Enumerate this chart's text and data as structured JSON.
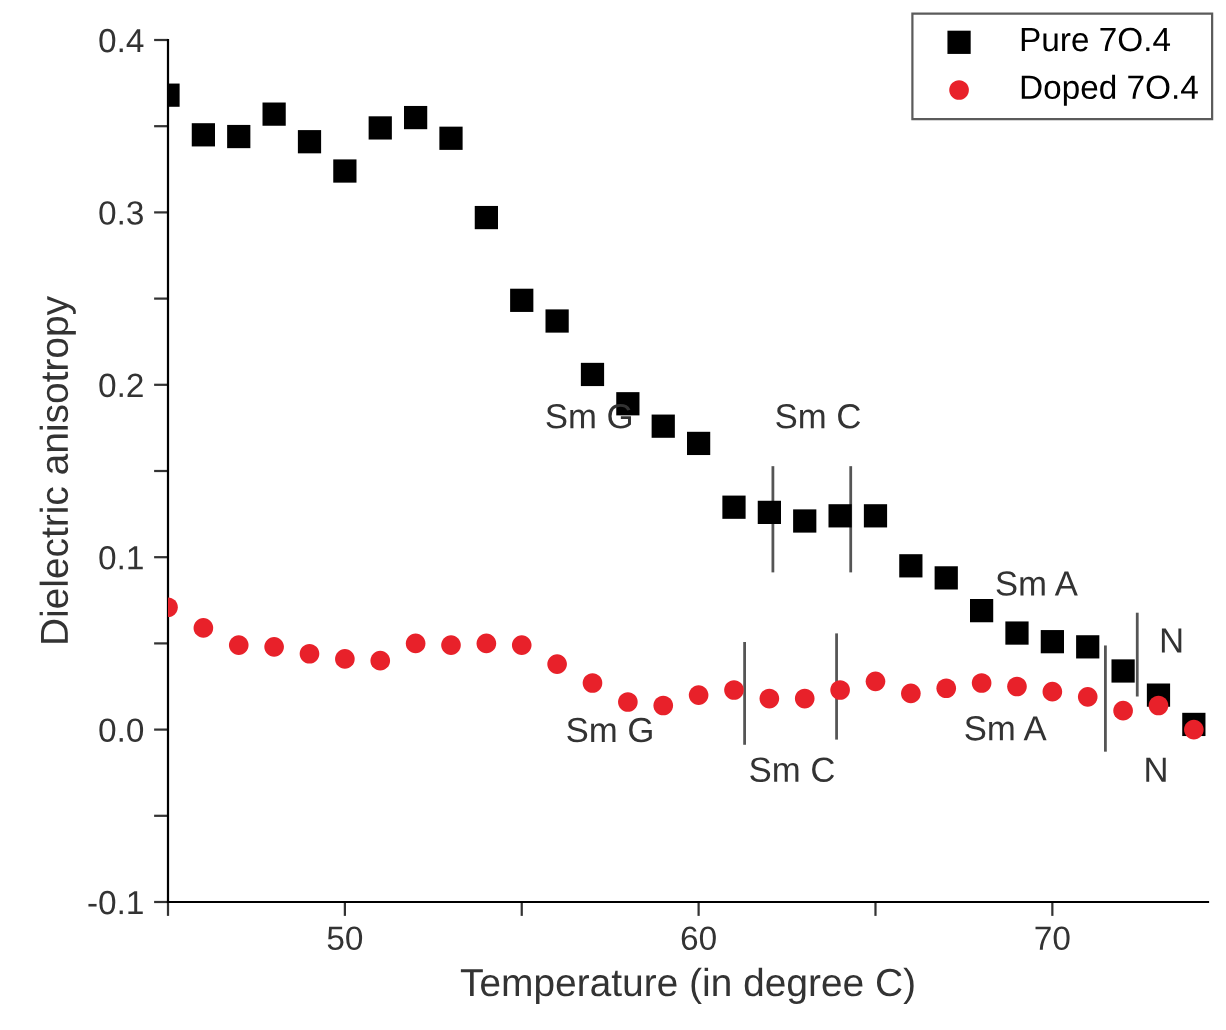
{
  "chart_data": {
    "type": "scatter",
    "xlabel": "Temperature (in degree C)",
    "ylabel": "Dielectric anisotropy",
    "xlim": [
      45,
      74.4
    ],
    "ylim": [
      -0.1,
      0.4
    ],
    "xticks": [
      {
        "value": 45,
        "label": null
      },
      50,
      {
        "value": 55,
        "label": null
      },
      60,
      {
        "value": 65,
        "label": null
      },
      70
    ],
    "yticks": [
      -0.1,
      {
        "value": -0.05,
        "label": null
      },
      {
        "value": 0,
        "label": "0.0"
      },
      {
        "value": 0.05,
        "label": null
      },
      0.1,
      {
        "value": 0.15,
        "label": null
      },
      0.2,
      {
        "value": 0.25,
        "label": null
      },
      0.3,
      {
        "value": 0.35,
        "label": null
      },
      0.4
    ],
    "grid": false,
    "legend": "top right",
    "series": [
      {
        "name": "Pure 7O.4",
        "color": "#000000",
        "marker": "square",
        "x": [
          45,
          46,
          47,
          48,
          49,
          50,
          51,
          52,
          53,
          54,
          55,
          56,
          57,
          58,
          59,
          60,
          61,
          62,
          63,
          64,
          65,
          66,
          67,
          68,
          69,
          70,
          71,
          72,
          73,
          74
        ],
        "values": [
          0.368,
          0.345,
          0.344,
          0.357,
          0.341,
          0.324,
          0.349,
          0.355,
          0.343,
          0.297,
          0.249,
          0.237,
          0.206,
          0.189,
          0.176,
          0.166,
          0.129,
          0.126,
          0.121,
          0.124,
          0.124,
          0.095,
          0.088,
          0.069,
          0.056,
          0.051,
          0.048,
          0.034,
          0.02,
          0.003
        ]
      },
      {
        "name": "Doped 7O.4",
        "color": "#e8212a",
        "marker": "circle",
        "x": [
          45,
          46,
          47,
          48,
          49,
          50,
          51,
          52,
          53,
          54,
          55,
          56,
          57,
          58,
          59,
          60,
          61,
          62,
          63,
          64,
          65,
          66,
          67,
          68,
          69,
          70,
          71,
          72,
          73,
          74
        ],
        "values": [
          0.071,
          0.059,
          0.049,
          0.048,
          0.044,
          0.041,
          0.04,
          0.05,
          0.049,
          0.05,
          0.049,
          0.038,
          0.027,
          0.016,
          0.014,
          0.02,
          0.023,
          0.018,
          0.018,
          0.023,
          0.028,
          0.021,
          0.024,
          0.027,
          0.025,
          0.022,
          0.019,
          0.011,
          0.014,
          0.0
        ]
      },
      {
        "type": "line",
        "color": "#555555",
        "x": [
          62.1,
          62.1
        ],
        "values": [
          0.152,
          0.092
        ]
      },
      {
        "type": "line",
        "color": "#555555",
        "x": [
          64.3,
          64.3
        ],
        "values": [
          0.152,
          0.092
        ]
      },
      {
        "type": "line",
        "color": "#555555",
        "x": [
          72.4,
          72.4
        ],
        "values": [
          0.067,
          0.02
        ]
      },
      {
        "type": "line",
        "color": "#555555",
        "x": [
          61.3,
          61.3
        ],
        "values": [
          0.05,
          -0.008
        ]
      },
      {
        "type": "line",
        "color": "#555555",
        "x": [
          63.9,
          63.9
        ],
        "values": [
          0.055,
          -0.005
        ]
      },
      {
        "type": "line",
        "color": "#555555",
        "x": [
          71.5,
          71.5
        ],
        "values": [
          0.048,
          -0.012
        ]
      }
    ],
    "annotations": [
      "Sm G",
      "Sm C",
      "Sm A",
      "N",
      "Sm G",
      "Sm C",
      "Sm A",
      "N"
    ]
  }
}
